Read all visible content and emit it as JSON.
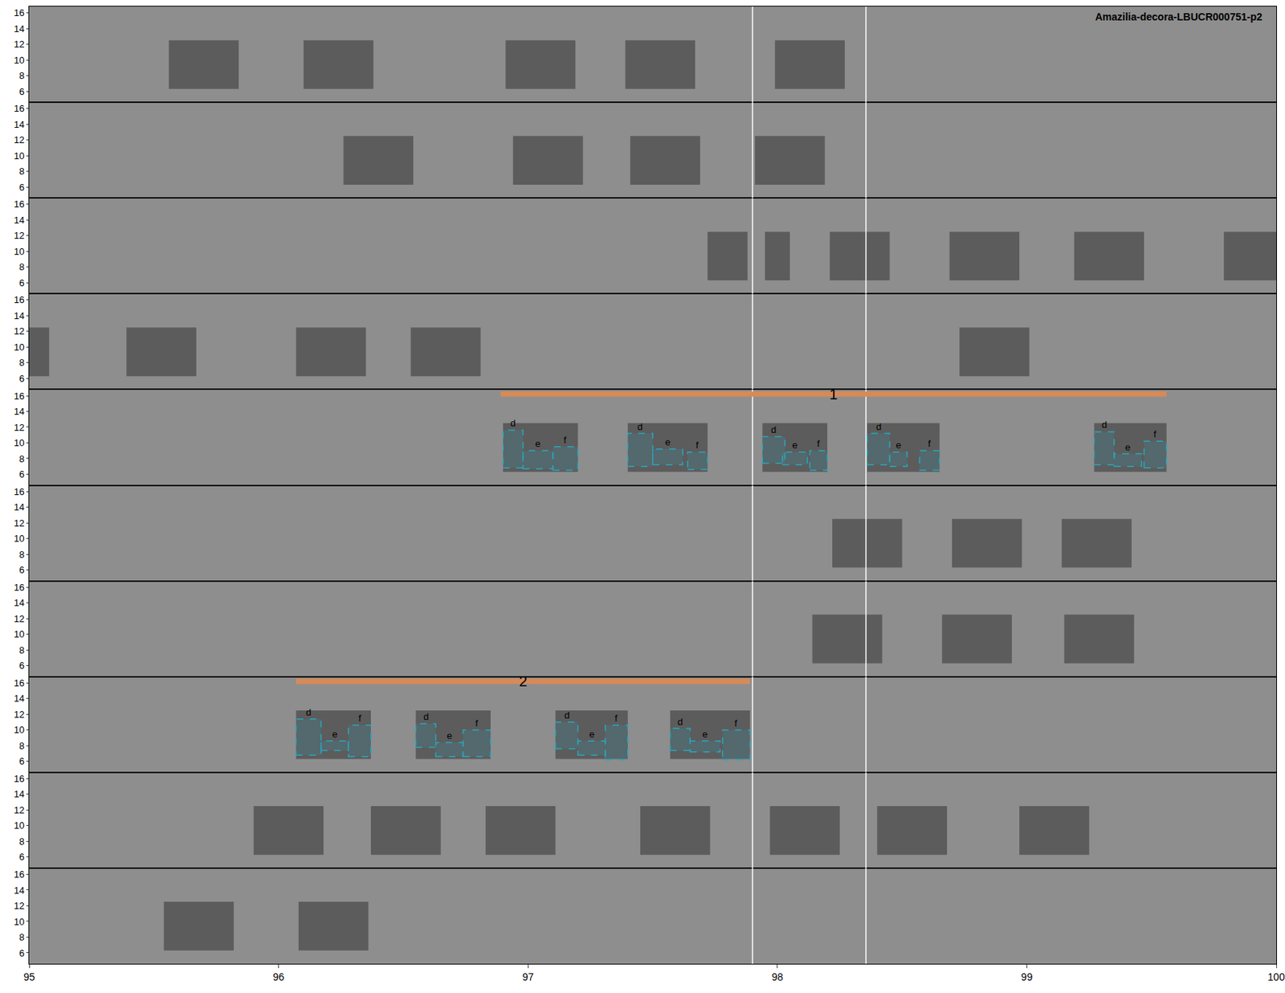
{
  "chart_data": {
    "type": "spectrogram",
    "title": "Amazilia-decora-LBUCR000751-p2",
    "xlim": [
      95,
      100
    ],
    "xticks": [
      95,
      96,
      97,
      98,
      99,
      100
    ],
    "ylim": [
      4.6,
      16.8
    ],
    "yticks": [
      6,
      8,
      10,
      12,
      14,
      16
    ],
    "call_band": [
      6.3,
      12.5
    ],
    "vlines": [
      97.9,
      98.355
    ],
    "rows": [
      {
        "calls": [
          [
            95.56,
            95.84
          ],
          [
            96.1,
            96.38
          ],
          [
            96.91,
            97.19
          ],
          [
            97.39,
            97.67
          ],
          [
            97.99,
            98.27
          ]
        ],
        "selections": []
      },
      {
        "calls": [
          [
            96.26,
            96.54
          ],
          [
            96.94,
            97.22
          ],
          [
            97.41,
            97.69
          ],
          [
            97.91,
            98.19
          ]
        ],
        "selections": []
      },
      {
        "calls": [
          [
            97.72,
            97.88
          ],
          [
            97.95,
            98.05
          ],
          [
            98.21,
            98.45
          ],
          [
            98.69,
            98.97
          ],
          [
            99.19,
            99.47
          ],
          [
            99.79,
            100.0
          ]
        ],
        "selections": []
      },
      {
        "calls": [
          [
            95.0,
            95.08
          ],
          [
            95.39,
            95.67
          ],
          [
            96.07,
            96.35
          ],
          [
            96.53,
            96.81
          ],
          [
            98.73,
            99.01
          ]
        ],
        "selections": []
      },
      {
        "calls": [
          [
            96.9,
            97.2
          ],
          [
            97.4,
            97.72
          ],
          [
            97.94,
            98.2
          ],
          [
            98.36,
            98.65
          ],
          [
            99.27,
            99.56
          ]
        ],
        "selections": [
          {
            "label": "1",
            "x": [
              96.89,
              99.56
            ],
            "y": 16.2,
            "syllables": [
              {
                "label": "d",
                "x": [
                  96.9,
                  96.98
                ],
                "y": [
                  6.8,
                  11.6
                ]
              },
              {
                "label": "e",
                "x": [
                  96.98,
                  97.1
                ],
                "y": [
                  6.7,
                  9.0
                ]
              },
              {
                "label": "f",
                "x": [
                  97.1,
                  97.2
                ],
                "y": [
                  6.5,
                  9.5
                ]
              },
              {
                "label": "d",
                "x": [
                  97.4,
                  97.5
                ],
                "y": [
                  7.0,
                  11.2
                ]
              },
              {
                "label": "e",
                "x": [
                  97.5,
                  97.62
                ],
                "y": [
                  7.2,
                  9.2
                ]
              },
              {
                "label": "f",
                "x": [
                  97.64,
                  97.72
                ],
                "y": [
                  6.6,
                  8.8
                ]
              },
              {
                "label": "d",
                "x": [
                  97.94,
                  98.03
                ],
                "y": [
                  7.4,
                  10.8
                ]
              },
              {
                "label": "e",
                "x": [
                  98.02,
                  98.12
                ],
                "y": [
                  7.2,
                  8.8
                ]
              },
              {
                "label": "f",
                "x": [
                  98.13,
                  98.2
                ],
                "y": [
                  6.5,
                  9.0
                ]
              },
              {
                "label": "d",
                "x": [
                  98.36,
                  98.45
                ],
                "y": [
                  7.2,
                  11.2
                ]
              },
              {
                "label": "e",
                "x": [
                  98.45,
                  98.52
                ],
                "y": [
                  7.0,
                  8.8
                ]
              },
              {
                "label": "f",
                "x": [
                  98.57,
                  98.65
                ],
                "y": [
                  6.5,
                  9.0
                ]
              },
              {
                "label": "d",
                "x": [
                  99.27,
                  99.35
                ],
                "y": [
                  7.2,
                  11.4
                ]
              },
              {
                "label": "e",
                "x": [
                  99.35,
                  99.46
                ],
                "y": [
                  7.0,
                  8.6
                ]
              },
              {
                "label": "f",
                "x": [
                  99.47,
                  99.56
                ],
                "y": [
                  6.8,
                  10.2
                ]
              }
            ]
          }
        ]
      },
      {
        "calls": [
          [
            98.22,
            98.5
          ],
          [
            98.7,
            98.98
          ],
          [
            99.14,
            99.42
          ]
        ],
        "selections": []
      },
      {
        "calls": [
          [
            98.14,
            98.42
          ],
          [
            98.66,
            98.94
          ],
          [
            99.15,
            99.43
          ]
        ],
        "selections": []
      },
      {
        "calls": [
          [
            96.07,
            96.37
          ],
          [
            96.55,
            96.85
          ],
          [
            97.11,
            97.4
          ],
          [
            97.57,
            97.89
          ]
        ],
        "selections": [
          {
            "label": "2",
            "x": [
              96.07,
              97.89
            ],
            "y": 16.2,
            "syllables": [
              {
                "label": "d",
                "x": [
                  96.07,
                  96.17
                ],
                "y": [
                  6.8,
                  11.4
                ]
              },
              {
                "label": "e",
                "x": [
                  96.17,
                  96.28
                ],
                "y": [
                  7.4,
                  8.6
                ]
              },
              {
                "label": "f",
                "x": [
                  96.28,
                  96.37
                ],
                "y": [
                  6.6,
                  10.6
                ]
              },
              {
                "label": "d",
                "x": [
                  96.55,
                  96.63
                ],
                "y": [
                  7.8,
                  10.8
                ]
              },
              {
                "label": "e",
                "x": [
                  96.63,
                  96.74
                ],
                "y": [
                  6.6,
                  8.4
                ]
              },
              {
                "label": "f",
                "x": [
                  96.74,
                  96.85
                ],
                "y": [
                  6.6,
                  10.0
                ]
              },
              {
                "label": "d",
                "x": [
                  97.11,
                  97.2
                ],
                "y": [
                  7.6,
                  11.0
                ]
              },
              {
                "label": "e",
                "x": [
                  97.2,
                  97.31
                ],
                "y": [
                  6.8,
                  8.6
                ]
              },
              {
                "label": "f",
                "x": [
                  97.31,
                  97.4
                ],
                "y": [
                  6.2,
                  10.6
                ]
              },
              {
                "label": "d",
                "x": [
                  97.57,
                  97.65
                ],
                "y": [
                  7.4,
                  10.2
                ]
              },
              {
                "label": "e",
                "x": [
                  97.65,
                  97.77
                ],
                "y": [
                  7.2,
                  8.6
                ]
              },
              {
                "label": "f",
                "x": [
                  97.78,
                  97.89
                ],
                "y": [
                  6.2,
                  10.0
                ]
              }
            ]
          }
        ]
      },
      {
        "calls": [
          [
            95.9,
            96.18
          ],
          [
            96.37,
            96.65
          ],
          [
            96.83,
            97.11
          ],
          [
            97.45,
            97.73
          ],
          [
            97.97,
            98.25
          ],
          [
            98.4,
            98.68
          ],
          [
            98.97,
            99.25
          ]
        ],
        "selections": []
      },
      {
        "calls": [
          [
            95.54,
            95.82
          ],
          [
            96.08,
            96.36
          ]
        ],
        "selections": []
      }
    ]
  }
}
